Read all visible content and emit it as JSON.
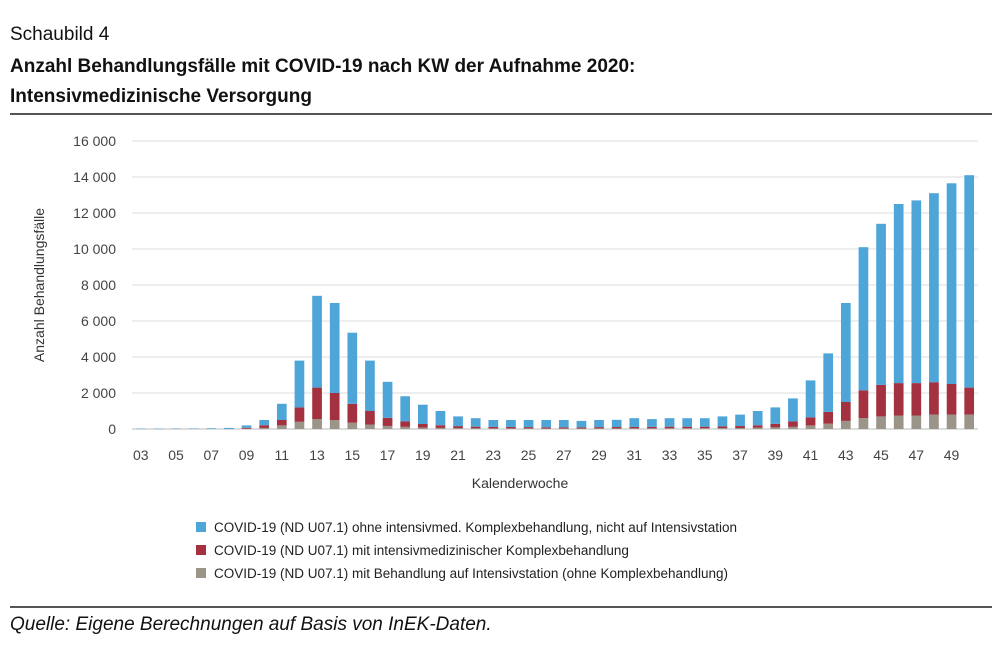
{
  "header": {
    "caption": "Schaubild 4",
    "title_line1": "Anzahl Behandlungsfälle mit COVID-19 nach KW der Aufnahme 2020:",
    "title_line2": "Intensivmedizinische Versorgung"
  },
  "footer": {
    "source": "Quelle: Eigene Berechnungen auf Basis von InEK-Daten."
  },
  "chart_data": {
    "type": "bar",
    "stacked": true,
    "xlabel": "Kalenderwoche",
    "ylabel": "Anzahl Behandlungsfälle",
    "ylim": [
      0,
      16000
    ],
    "yticks": [
      0,
      2000,
      4000,
      6000,
      8000,
      10000,
      12000,
      14000,
      16000
    ],
    "ytick_labels": [
      "0",
      "2 000",
      "4 000",
      "6 000",
      "8 000",
      "10 000",
      "12 000",
      "14 000",
      "16 000"
    ],
    "grid": true,
    "legend_position": "bottom",
    "categories": [
      "03",
      "04",
      "05",
      "06",
      "07",
      "08",
      "09",
      "10",
      "11",
      "12",
      "13",
      "14",
      "15",
      "16",
      "17",
      "18",
      "19",
      "20",
      "21",
      "22",
      "23",
      "24",
      "25",
      "26",
      "27",
      "28",
      "29",
      "30",
      "31",
      "32",
      "33",
      "34",
      "35",
      "36",
      "37",
      "38",
      "39",
      "40",
      "41",
      "42",
      "43",
      "44",
      "45",
      "46",
      "47",
      "48",
      "49",
      "50"
    ],
    "xtick_labels": [
      "03",
      "05",
      "07",
      "09",
      "11",
      "13",
      "15",
      "17",
      "19",
      "21",
      "23",
      "25",
      "27",
      "29",
      "31",
      "33",
      "35",
      "37",
      "39",
      "41",
      "43",
      "45",
      "47",
      "49"
    ],
    "series": [
      {
        "name": "COVID-19 (ND U07.1) mit Behandlung auf Intensivstation (ohne Komplexbehandlung)",
        "color": "#9a9489",
        "values": [
          0,
          0,
          0,
          0,
          0,
          0,
          20,
          60,
          200,
          400,
          550,
          500,
          350,
          250,
          170,
          120,
          80,
          60,
          50,
          40,
          35,
          35,
          35,
          30,
          30,
          30,
          35,
          35,
          40,
          40,
          45,
          45,
          45,
          50,
          55,
          70,
          90,
          120,
          200,
          300,
          450,
          600,
          700,
          750,
          750,
          800,
          800,
          800
        ]
      },
      {
        "name": "COVID-19 (ND U07.1) mit intensivmedizinischer Komplexbehandlung",
        "color": "#a3313f",
        "values": [
          0,
          0,
          0,
          0,
          0,
          0,
          50,
          150,
          300,
          800,
          1750,
          1500,
          1050,
          750,
          450,
          300,
          200,
          150,
          110,
          90,
          80,
          80,
          70,
          65,
          65,
          65,
          70,
          75,
          75,
          80,
          85,
          85,
          85,
          95,
          110,
          140,
          200,
          300,
          450,
          650,
          1050,
          1550,
          1750,
          1800,
          1800,
          1800,
          1700,
          1500
        ]
      },
      {
        "name": "COVID-19 (ND U07.1) ohne intensivmed. Komplexbehandlung, nicht auf Intensivstation",
        "color": "#4ea5d8",
        "values": [
          20,
          20,
          25,
          30,
          40,
          60,
          130,
          290,
          900,
          2600,
          5100,
          5000,
          3950,
          2800,
          2000,
          1400,
          1070,
          790,
          540,
          470,
          385,
          385,
          395,
          405,
          405,
          355,
          395,
          400,
          485,
          430,
          470,
          470,
          470,
          555,
          635,
          790,
          910,
          1280,
          2050,
          3250,
          5500,
          7950,
          8950,
          9950,
          10150,
          10500,
          11150,
          11800
        ]
      }
    ],
    "legend_order": [
      2,
      1,
      0
    ]
  }
}
